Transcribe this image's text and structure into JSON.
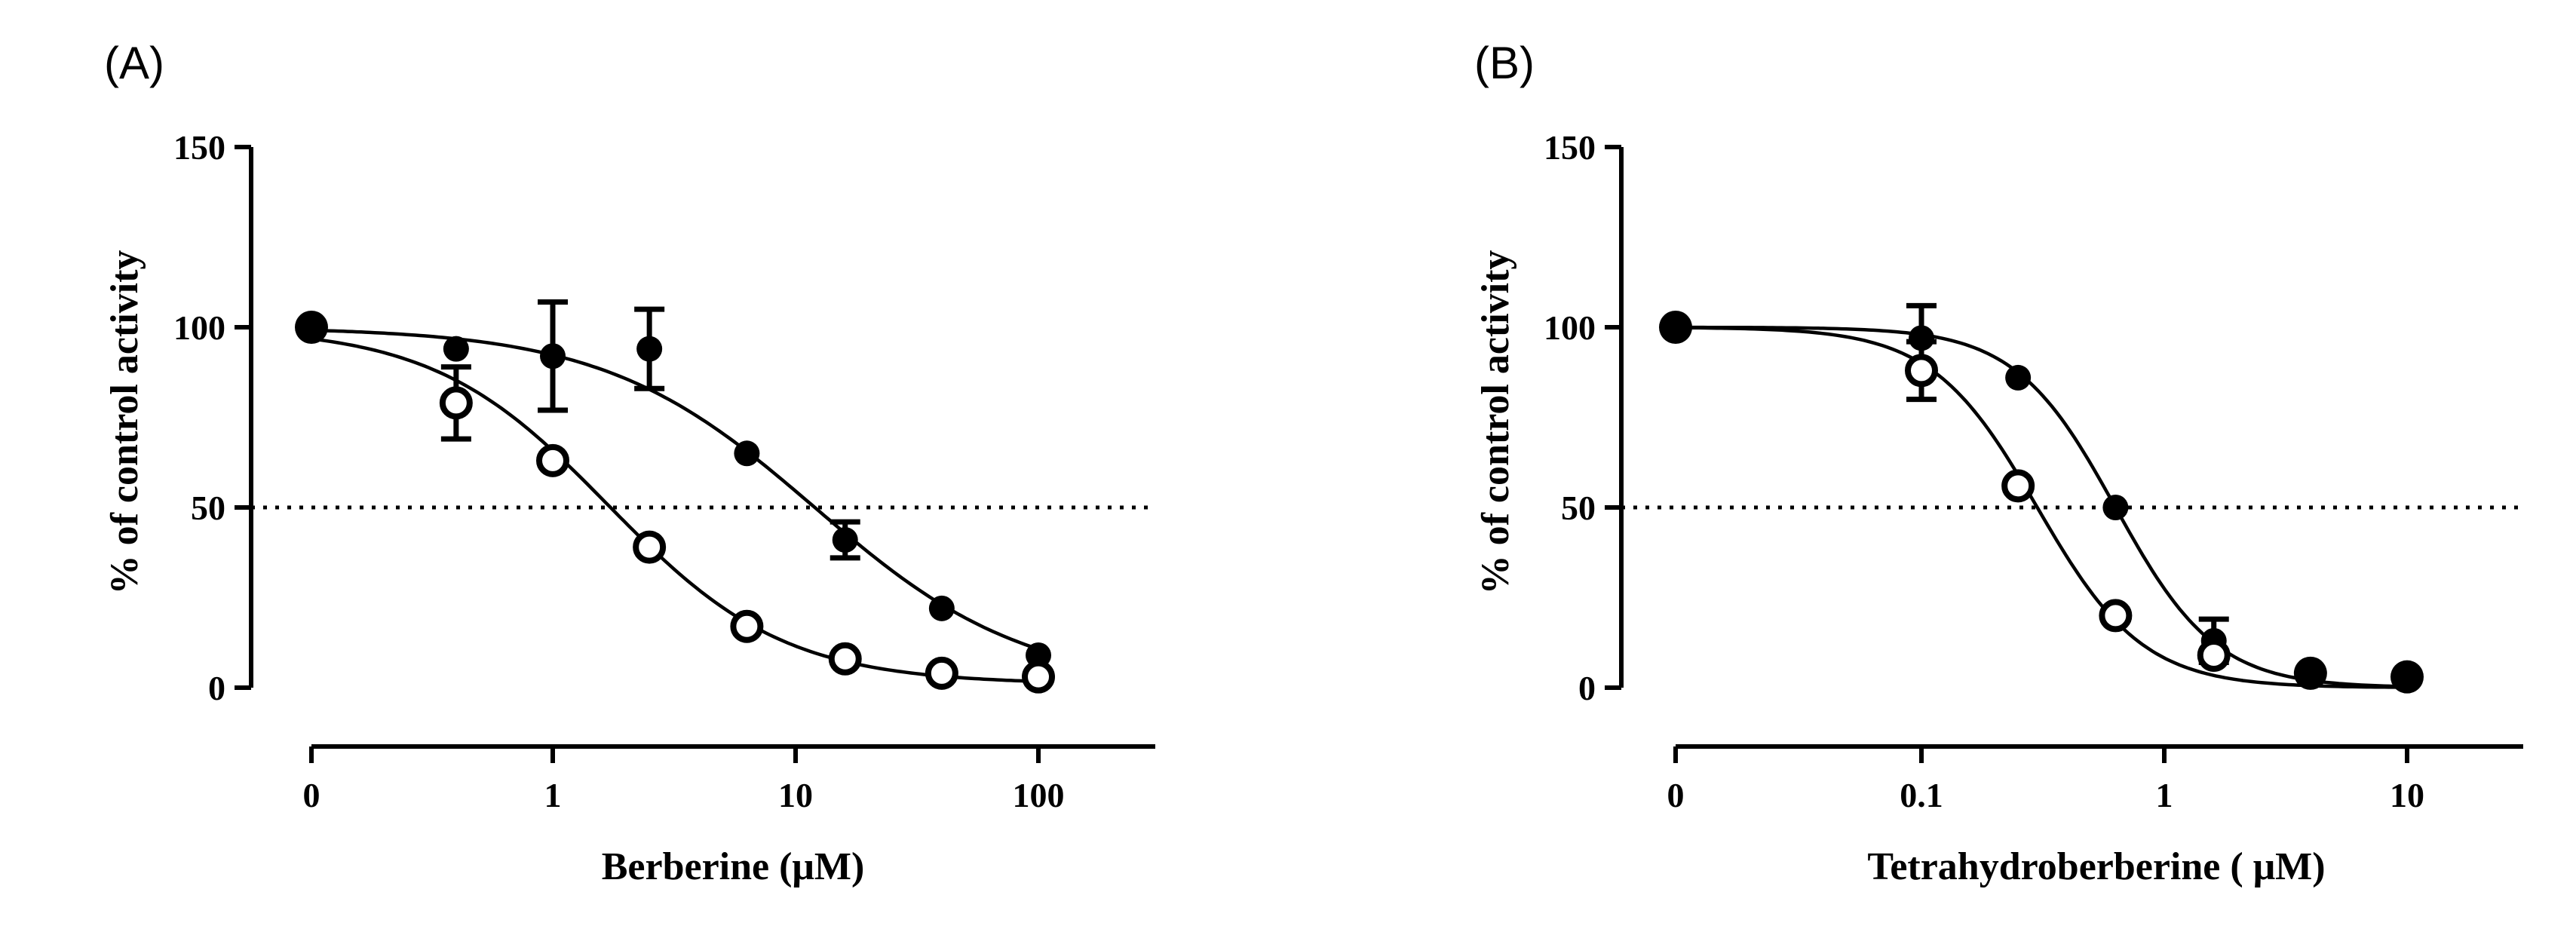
{
  "chart_data": [
    {
      "type": "scatter",
      "panel_label": "(A)",
      "xlabel": "Berberine (μM)",
      "ylabel": "% of control activity",
      "x_scale": "log",
      "x_tick_labels": [
        "0",
        "1",
        "10",
        "100"
      ],
      "x_ticks": [
        0,
        1,
        10,
        100
      ],
      "y_ticks": [
        0,
        50,
        100,
        150
      ],
      "ylim": [
        0,
        150
      ],
      "reference_line": {
        "y": 50,
        "style": "dotted"
      },
      "series": [
        {
          "name": "filled",
          "marker": "filled-circle",
          "points": [
            {
              "x": 0,
              "y": 100,
              "err": 0
            },
            {
              "x": 0.4,
              "y": 94,
              "err": 0
            },
            {
              "x": 1.0,
              "y": 92,
              "err": 15
            },
            {
              "x": 2.5,
              "y": 94,
              "err": 11
            },
            {
              "x": 6.3,
              "y": 65,
              "err": 0
            },
            {
              "x": 16,
              "y": 41,
              "err": 5
            },
            {
              "x": 40,
              "y": 22,
              "err": 0
            },
            {
              "x": 100,
              "y": 9,
              "err": 0
            }
          ],
          "fit": {
            "top": 100,
            "bottom": 0,
            "ic50": 12,
            "hill": 1.0
          }
        },
        {
          "name": "open",
          "marker": "open-circle",
          "points": [
            {
              "x": 0.4,
              "y": 79,
              "err": 10
            },
            {
              "x": 1.0,
              "y": 63,
              "err": 0
            },
            {
              "x": 2.5,
              "y": 39,
              "err": 0
            },
            {
              "x": 6.3,
              "y": 17,
              "err": 0
            },
            {
              "x": 16,
              "y": 8,
              "err": 0
            },
            {
              "x": 40,
              "y": 4,
              "err": 0
            },
            {
              "x": 100,
              "y": 3,
              "err": 0
            }
          ],
          "fit": {
            "top": 100,
            "bottom": 1,
            "ic50": 1.7,
            "hill": 1.2
          }
        }
      ]
    },
    {
      "type": "scatter",
      "panel_label": "(B)",
      "xlabel": "Tetrahydroberberine ( μM)",
      "ylabel": "% of control activity",
      "x_scale": "log",
      "x_tick_labels": [
        "0",
        "0.1",
        "1",
        "10"
      ],
      "x_ticks": [
        0,
        0.1,
        1,
        10
      ],
      "y_ticks": [
        0,
        50,
        100,
        150
      ],
      "ylim": [
        0,
        150
      ],
      "reference_line": {
        "y": 50,
        "style": "dotted"
      },
      "series": [
        {
          "name": "filled",
          "marker": "filled-circle",
          "points": [
            {
              "x": 0,
              "y": 100,
              "err": 0
            },
            {
              "x": 0.1,
              "y": 97,
              "err": 9
            },
            {
              "x": 0.25,
              "y": 86,
              "err": 0
            },
            {
              "x": 0.63,
              "y": 50,
              "err": 0
            },
            {
              "x": 1.6,
              "y": 13,
              "err": 6
            },
            {
              "x": 4.0,
              "y": 4,
              "err": 0
            },
            {
              "x": 10,
              "y": 3,
              "err": 0
            }
          ],
          "fit": {
            "top": 100,
            "bottom": 0,
            "ic50": 0.63,
            "hill": 2.1
          }
        },
        {
          "name": "open",
          "marker": "open-circle",
          "points": [
            {
              "x": 0.1,
              "y": 88,
              "err": 8
            },
            {
              "x": 0.25,
              "y": 56,
              "err": 0
            },
            {
              "x": 0.63,
              "y": 20,
              "err": 0
            },
            {
              "x": 1.6,
              "y": 9,
              "err": 0
            }
          ],
          "fit": {
            "top": 100,
            "bottom": 0,
            "ic50": 0.3,
            "hill": 2.0
          }
        }
      ]
    }
  ]
}
